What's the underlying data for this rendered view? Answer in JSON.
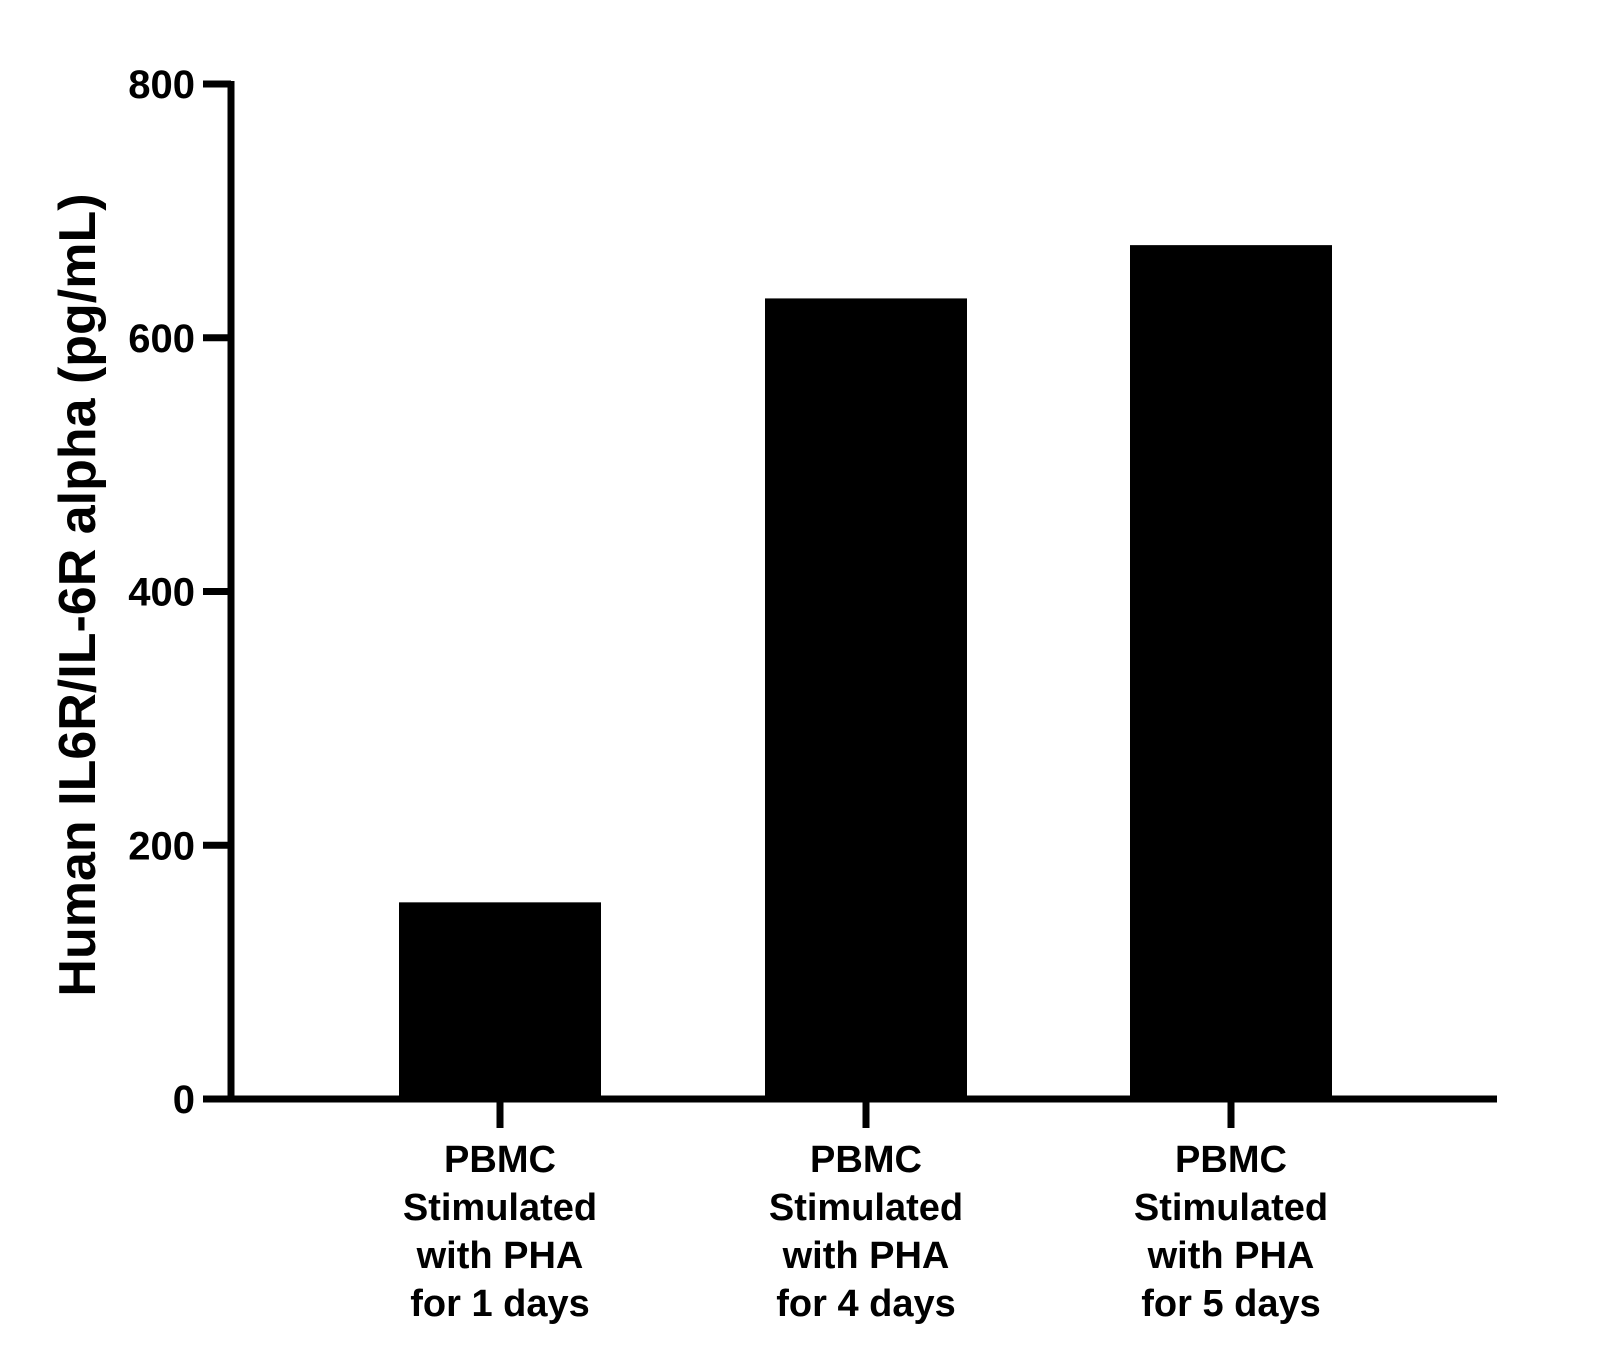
{
  "chart_data": {
    "type": "bar",
    "categories": [
      [
        "PBMC",
        "Stimulated",
        "with PHA",
        "for 1 days"
      ],
      [
        "PBMC",
        "Stimulated",
        "with PHA",
        "for 4 days"
      ],
      [
        "PBMC",
        "Stimulated",
        "with PHA",
        "for 5 days"
      ]
    ],
    "values": [
      155,
      631,
      673
    ],
    "title": "",
    "xlabel": "",
    "ylabel": "Human IL6R/IL-6R alpha (pg/mL)",
    "ylim": [
      0,
      800
    ],
    "yticks": [
      0,
      200,
      400,
      600,
      800
    ],
    "ytick_labels": [
      "0",
      "200",
      "400",
      "600",
      "800"
    ],
    "grid": false,
    "colors": {
      "bar": "#000000",
      "axis": "#000000"
    }
  }
}
